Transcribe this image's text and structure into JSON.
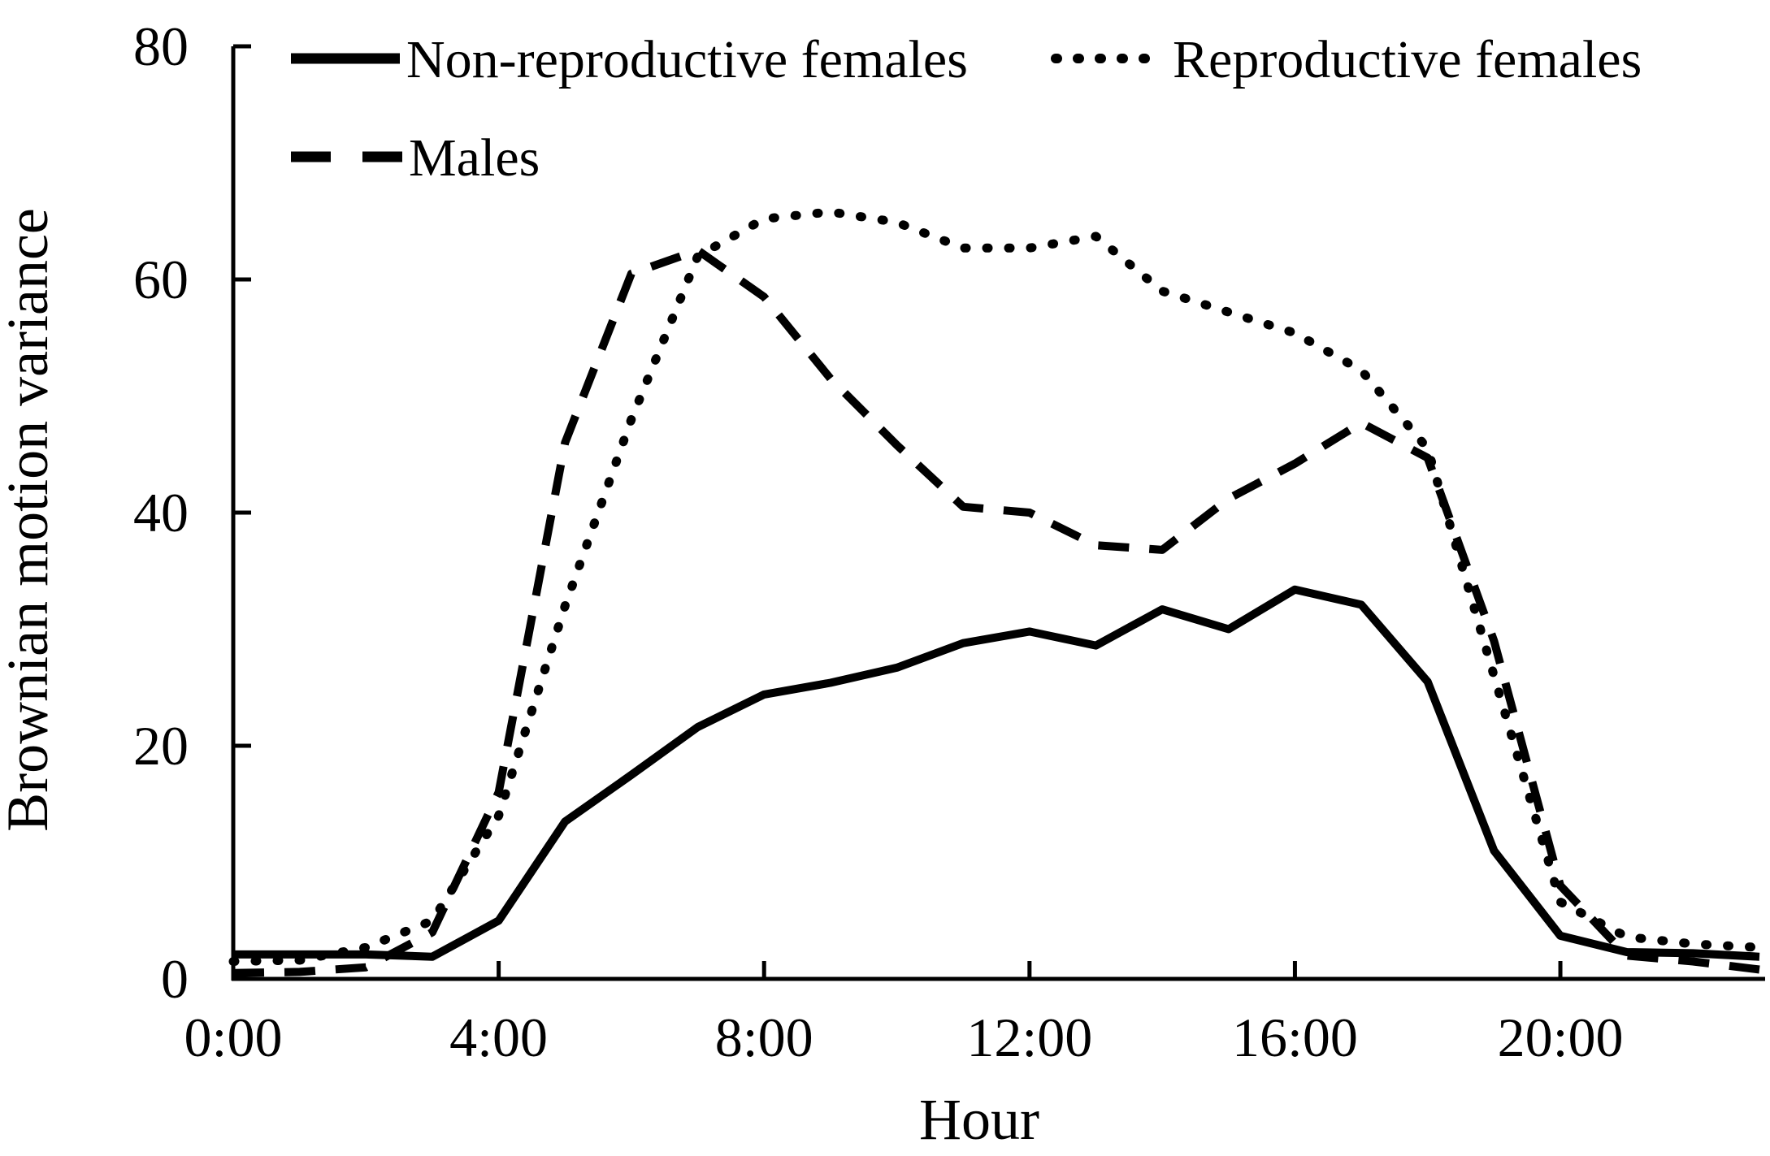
{
  "page": {
    "background_color": "#ffffff",
    "line_color": "#000000"
  },
  "chart_data": {
    "type": "line",
    "title": "",
    "xlabel": "Hour",
    "ylabel": "Brownian motion variance",
    "grid": false,
    "legend_position": "top-left-inside",
    "xlim_hours": [
      0,
      23
    ],
    "ylim": [
      0,
      80
    ],
    "y_ticks": [
      0,
      20,
      40,
      60,
      80
    ],
    "x_ticks": [
      {
        "hour": 0,
        "label": "0:00"
      },
      {
        "hour": 4,
        "label": "4:00"
      },
      {
        "hour": 8,
        "label": "8:00"
      },
      {
        "hour": 12,
        "label": "12:00"
      },
      {
        "hour": 16,
        "label": "16:00"
      },
      {
        "hour": 20,
        "label": "20:00"
      }
    ],
    "x_hours": [
      0,
      1,
      2,
      3,
      4,
      5,
      6,
      7,
      8,
      9,
      10,
      11,
      12,
      13,
      14,
      15,
      16,
      17,
      18,
      19,
      20,
      21,
      22,
      23
    ],
    "series": [
      {
        "name": "Non-reproductive females",
        "style": "solid",
        "values": [
          2.1,
          2.1,
          2.1,
          1.9,
          5.0,
          13.5,
          17.5,
          21.6,
          24.4,
          25.4,
          26.7,
          28.8,
          29.8,
          28.6,
          31.7,
          30.0,
          33.4,
          32.1,
          25.5,
          11.0,
          3.7,
          2.3,
          2.2,
          1.9
        ]
      },
      {
        "name": "Reproductive females",
        "style": "dotted",
        "values": [
          1.5,
          1.6,
          2.7,
          5.0,
          14.0,
          32.0,
          48.0,
          62.0,
          65.2,
          65.8,
          64.9,
          62.7,
          62.7,
          63.7,
          59.0,
          57.2,
          55.4,
          52.2,
          45.5,
          26.0,
          6.6,
          3.6,
          3.0,
          2.7
        ]
      },
      {
        "name": "Males",
        "style": "dashed",
        "values": [
          0.5,
          0.6,
          1.0,
          4.0,
          16.0,
          46.0,
          60.5,
          62.5,
          58.5,
          51.5,
          45.8,
          40.5,
          40.0,
          37.2,
          36.8,
          41.2,
          44.2,
          47.7,
          44.7,
          29.0,
          8.0,
          2.0,
          1.5,
          0.8
        ]
      }
    ]
  }
}
